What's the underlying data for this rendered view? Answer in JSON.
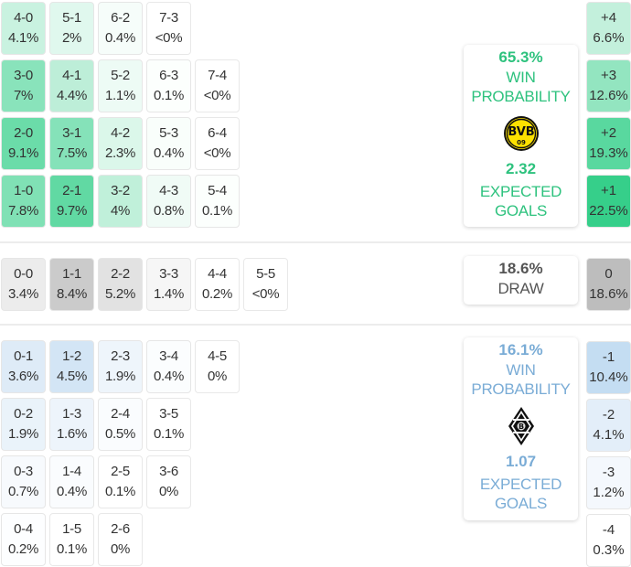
{
  "home": {
    "team": "Borussia Dortmund",
    "win_probability": "65.3%",
    "win_label": "WIN PROBABILITY",
    "expected_goals": "2.32",
    "xg_label": "EXPECTED GOALS",
    "color": "#2ec27e",
    "logo": "bvb-crest-icon",
    "rows": [
      [
        {
          "score": "4-0",
          "pct": "4.1%",
          "bg": "#c9f2e0"
        },
        {
          "score": "5-1",
          "pct": "2%",
          "bg": "#e0f8ee"
        },
        {
          "score": "6-2",
          "pct": "0.4%",
          "bg": "#f6fdfa"
        },
        {
          "score": "7-3",
          "pct": "<0%",
          "bg": "#ffffff"
        }
      ],
      [
        {
          "score": "3-0",
          "pct": "7%",
          "bg": "#89e3bb"
        },
        {
          "score": "4-1",
          "pct": "4.4%",
          "bg": "#bdeed8"
        },
        {
          "score": "5-2",
          "pct": "1.1%",
          "bg": "#edfbf5"
        },
        {
          "score": "6-3",
          "pct": "0.1%",
          "bg": "#fcfffd"
        },
        {
          "score": "7-4",
          "pct": "<0%",
          "bg": "#ffffff"
        }
      ],
      [
        {
          "score": "2-0",
          "pct": "9.1%",
          "bg": "#6bdca9"
        },
        {
          "score": "3-1",
          "pct": "7.5%",
          "bg": "#85e2b9"
        },
        {
          "score": "4-2",
          "pct": "2.3%",
          "bg": "#dbf7ea"
        },
        {
          "score": "5-3",
          "pct": "0.4%",
          "bg": "#f9fefb"
        },
        {
          "score": "6-4",
          "pct": "<0%",
          "bg": "#ffffff"
        }
      ],
      [
        {
          "score": "1-0",
          "pct": "7.8%",
          "bg": "#80e1b5"
        },
        {
          "score": "2-1",
          "pct": "9.7%",
          "bg": "#61d9a3"
        },
        {
          "score": "3-2",
          "pct": "4%",
          "bg": "#c0f0da"
        },
        {
          "score": "4-3",
          "pct": "0.8%",
          "bg": "#f0fbf6"
        },
        {
          "score": "5-4",
          "pct": "0.1%",
          "bg": "#fcfffd"
        }
      ]
    ],
    "diffs": [
      {
        "label": "+4",
        "pct": "6.6%",
        "bg": "#c3f0dc"
      },
      {
        "label": "+3",
        "pct": "12.6%",
        "bg": "#93e5c0"
      },
      {
        "label": "+2",
        "pct": "19.3%",
        "bg": "#59d89f"
      },
      {
        "label": "+1",
        "pct": "22.5%",
        "bg": "#36cf8a"
      }
    ]
  },
  "draw": {
    "probability": "18.6%",
    "label": "DRAW",
    "cells": [
      {
        "score": "0-0",
        "pct": "3.4%",
        "bg": "#ececec"
      },
      {
        "score": "1-1",
        "pct": "8.4%",
        "bg": "#cbcbcb"
      },
      {
        "score": "2-2",
        "pct": "5.2%",
        "bg": "#e2e2e2"
      },
      {
        "score": "3-3",
        "pct": "1.4%",
        "bg": "#f6f6f6"
      },
      {
        "score": "4-4",
        "pct": "0.2%",
        "bg": "#ffffff"
      },
      {
        "score": "5-5",
        "pct": "<0%",
        "bg": "#ffffff"
      }
    ],
    "diff": {
      "label": "0",
      "pct": "18.6%",
      "bg": "#bdbdbd"
    }
  },
  "away": {
    "team": "Borussia Mönchengladbach",
    "win_probability": "16.1%",
    "win_label": "WIN PROBABILITY",
    "expected_goals": "1.07",
    "xg_label": "EXPECTED GOALS",
    "color": "#7aacd6",
    "logo": "gladbach-crest-icon",
    "rows": [
      [
        {
          "score": "0-1",
          "pct": "3.6%",
          "bg": "#deebf7"
        },
        {
          "score": "1-2",
          "pct": "4.5%",
          "bg": "#d3e5f5"
        },
        {
          "score": "2-3",
          "pct": "1.9%",
          "bg": "#eef5fb"
        },
        {
          "score": "3-4",
          "pct": "0.4%",
          "bg": "#fbfdfe"
        },
        {
          "score": "4-5",
          "pct": "0%",
          "bg": "#ffffff"
        }
      ],
      [
        {
          "score": "0-2",
          "pct": "1.9%",
          "bg": "#eaf3fa"
        },
        {
          "score": "1-3",
          "pct": "1.6%",
          "bg": "#edf4fb"
        },
        {
          "score": "2-4",
          "pct": "0.5%",
          "bg": "#fafcfe"
        },
        {
          "score": "3-5",
          "pct": "0.1%",
          "bg": "#ffffff"
        }
      ],
      [
        {
          "score": "0-3",
          "pct": "0.7%",
          "bg": "#f7fafd"
        },
        {
          "score": "1-4",
          "pct": "0.4%",
          "bg": "#fafcfe"
        },
        {
          "score": "2-5",
          "pct": "0.1%",
          "bg": "#ffffff"
        },
        {
          "score": "3-6",
          "pct": "0%",
          "bg": "#ffffff"
        }
      ],
      [
        {
          "score": "0-4",
          "pct": "0.2%",
          "bg": "#fdfeff"
        },
        {
          "score": "1-5",
          "pct": "0.1%",
          "bg": "#ffffff"
        },
        {
          "score": "2-6",
          "pct": "0%",
          "bg": "#ffffff"
        }
      ]
    ],
    "diffs": [
      {
        "label": "-1",
        "pct": "10.4%",
        "bg": "#c4ddf2"
      },
      {
        "label": "-2",
        "pct": "4.1%",
        "bg": "#e3eef9"
      },
      {
        "label": "-3",
        "pct": "1.2%",
        "bg": "#f4f8fd"
      },
      {
        "label": "-4",
        "pct": "0.3%",
        "bg": "#ffffff"
      }
    ]
  }
}
